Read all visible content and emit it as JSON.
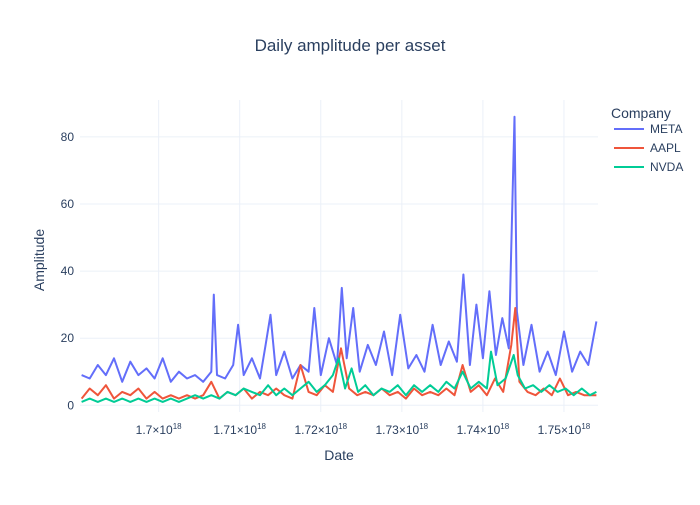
{
  "chart_data": {
    "type": "line",
    "title": "Daily amplitude per asset",
    "xlabel": "Date",
    "ylabel": "Amplitude",
    "x_range": [
      1.6903e+18,
      1.7542e+18
    ],
    "ylim": [
      -2,
      91
    ],
    "x_ticks": [
      {
        "value": 1.7e+18,
        "mantissa": "1.7",
        "exp": "18"
      },
      {
        "value": 1.71e+18,
        "mantissa": "1.71",
        "exp": "18"
      },
      {
        "value": 1.72e+18,
        "mantissa": "1.72",
        "exp": "18"
      },
      {
        "value": 1.73e+18,
        "mantissa": "1.73",
        "exp": "18"
      },
      {
        "value": 1.74e+18,
        "mantissa": "1.74",
        "exp": "18"
      },
      {
        "value": 1.75e+18,
        "mantissa": "1.75",
        "exp": "18"
      }
    ],
    "y_ticks": [
      0,
      20,
      40,
      60,
      80
    ],
    "grid": true,
    "legend": {
      "title": "Company",
      "position": "top-right"
    },
    "series": [
      {
        "name": "META",
        "color": "#636efa",
        "points": [
          [
            1.6905e+18,
            9
          ],
          [
            1.6915e+18,
            8
          ],
          [
            1.6925e+18,
            12
          ],
          [
            1.6935e+18,
            9
          ],
          [
            1.6945e+18,
            14
          ],
          [
            1.6955e+18,
            7
          ],
          [
            1.6965e+18,
            13
          ],
          [
            1.6975e+18,
            9
          ],
          [
            1.6985e+18,
            11
          ],
          [
            1.6995e+18,
            8
          ],
          [
            1.7005e+18,
            14
          ],
          [
            1.7015e+18,
            7
          ],
          [
            1.7025e+18,
            10
          ],
          [
            1.7035e+18,
            8
          ],
          [
            1.7045e+18,
            9
          ],
          [
            1.7055e+18,
            7
          ],
          [
            1.7065e+18,
            10
          ],
          [
            1.7068e+18,
            33
          ],
          [
            1.7072e+18,
            9
          ],
          [
            1.7082e+18,
            8
          ],
          [
            1.7092e+18,
            12
          ],
          [
            1.7098e+18,
            24
          ],
          [
            1.7105e+18,
            9
          ],
          [
            1.7115e+18,
            14
          ],
          [
            1.7125e+18,
            8
          ],
          [
            1.7132e+18,
            18
          ],
          [
            1.7138e+18,
            27
          ],
          [
            1.7145e+18,
            9
          ],
          [
            1.7155e+18,
            16
          ],
          [
            1.7165e+18,
            8
          ],
          [
            1.7175e+18,
            12
          ],
          [
            1.7185e+18,
            10
          ],
          [
            1.7192e+18,
            29
          ],
          [
            1.72e+18,
            9
          ],
          [
            1.721e+18,
            20
          ],
          [
            1.722e+18,
            12
          ],
          [
            1.7226e+18,
            35
          ],
          [
            1.7232e+18,
            14
          ],
          [
            1.724e+18,
            29
          ],
          [
            1.7248e+18,
            10
          ],
          [
            1.7258e+18,
            18
          ],
          [
            1.7268e+18,
            12
          ],
          [
            1.7278e+18,
            22
          ],
          [
            1.7288e+18,
            9
          ],
          [
            1.7298e+18,
            27
          ],
          [
            1.7308e+18,
            11
          ],
          [
            1.7318e+18,
            15
          ],
          [
            1.7328e+18,
            10
          ],
          [
            1.7338e+18,
            24
          ],
          [
            1.7348e+18,
            12
          ],
          [
            1.7358e+18,
            19
          ],
          [
            1.7368e+18,
            13
          ],
          [
            1.7376e+18,
            39
          ],
          [
            1.7384e+18,
            12
          ],
          [
            1.7392e+18,
            30
          ],
          [
            1.74e+18,
            14
          ],
          [
            1.7408e+18,
            34
          ],
          [
            1.7416e+18,
            15
          ],
          [
            1.7424e+18,
            26
          ],
          [
            1.7432e+18,
            17
          ],
          [
            1.7436e+18,
            57
          ],
          [
            1.7439e+18,
            86
          ],
          [
            1.7442e+18,
            28
          ],
          [
            1.745e+18,
            12
          ],
          [
            1.746e+18,
            24
          ],
          [
            1.747e+18,
            10
          ],
          [
            1.748e+18,
            16
          ],
          [
            1.749e+18,
            9
          ],
          [
            1.75e+18,
            22
          ],
          [
            1.751e+18,
            10
          ],
          [
            1.752e+18,
            16
          ],
          [
            1.753e+18,
            12
          ],
          [
            1.754e+18,
            25
          ]
        ]
      },
      {
        "name": "AAPL",
        "color": "#ef553b",
        "points": [
          [
            1.6905e+18,
            2
          ],
          [
            1.6915e+18,
            5
          ],
          [
            1.6925e+18,
            3
          ],
          [
            1.6935e+18,
            6
          ],
          [
            1.6945e+18,
            2
          ],
          [
            1.6955e+18,
            4
          ],
          [
            1.6965e+18,
            3
          ],
          [
            1.6975e+18,
            5
          ],
          [
            1.6985e+18,
            2
          ],
          [
            1.6995e+18,
            4
          ],
          [
            1.7005e+18,
            2
          ],
          [
            1.7015e+18,
            3
          ],
          [
            1.7025e+18,
            2
          ],
          [
            1.7035e+18,
            3
          ],
          [
            1.7045e+18,
            2
          ],
          [
            1.7055e+18,
            3
          ],
          [
            1.7065e+18,
            7
          ],
          [
            1.7075e+18,
            2
          ],
          [
            1.7085e+18,
            4
          ],
          [
            1.7095e+18,
            3
          ],
          [
            1.7105e+18,
            5
          ],
          [
            1.7115e+18,
            2
          ],
          [
            1.7125e+18,
            4
          ],
          [
            1.7135e+18,
            3
          ],
          [
            1.7145e+18,
            5
          ],
          [
            1.7155e+18,
            3
          ],
          [
            1.7165e+18,
            2
          ],
          [
            1.7175e+18,
            12
          ],
          [
            1.7185e+18,
            4
          ],
          [
            1.7195e+18,
            3
          ],
          [
            1.7205e+18,
            6
          ],
          [
            1.7215e+18,
            4
          ],
          [
            1.7225e+18,
            17
          ],
          [
            1.7235e+18,
            5
          ],
          [
            1.7245e+18,
            3
          ],
          [
            1.7255e+18,
            4
          ],
          [
            1.7265e+18,
            3
          ],
          [
            1.7275e+18,
            5
          ],
          [
            1.7285e+18,
            3
          ],
          [
            1.7295e+18,
            4
          ],
          [
            1.7305e+18,
            2
          ],
          [
            1.7315e+18,
            5
          ],
          [
            1.7325e+18,
            3
          ],
          [
            1.7335e+18,
            4
          ],
          [
            1.7345e+18,
            3
          ],
          [
            1.7355e+18,
            5
          ],
          [
            1.7365e+18,
            3
          ],
          [
            1.7375e+18,
            12
          ],
          [
            1.7385e+18,
            4
          ],
          [
            1.7395e+18,
            6
          ],
          [
            1.7405e+18,
            3
          ],
          [
            1.7415e+18,
            8
          ],
          [
            1.7425e+18,
            4
          ],
          [
            1.7435e+18,
            18
          ],
          [
            1.744e+18,
            29
          ],
          [
            1.7445e+18,
            7
          ],
          [
            1.7455e+18,
            4
          ],
          [
            1.7465e+18,
            3
          ],
          [
            1.7475e+18,
            5
          ],
          [
            1.7485e+18,
            3
          ],
          [
            1.7495e+18,
            8
          ],
          [
            1.7505e+18,
            3
          ],
          [
            1.7515e+18,
            4
          ],
          [
            1.7525e+18,
            3
          ],
          [
            1.754e+18,
            3
          ]
        ]
      },
      {
        "name": "NVDA",
        "color": "#00cc96",
        "points": [
          [
            1.6905e+18,
            1
          ],
          [
            1.6915e+18,
            2
          ],
          [
            1.6925e+18,
            1
          ],
          [
            1.6935e+18,
            2
          ],
          [
            1.6945e+18,
            1
          ],
          [
            1.6955e+18,
            2
          ],
          [
            1.6965e+18,
            1
          ],
          [
            1.6975e+18,
            2
          ],
          [
            1.6985e+18,
            1
          ],
          [
            1.6995e+18,
            2
          ],
          [
            1.7005e+18,
            1
          ],
          [
            1.7015e+18,
            2
          ],
          [
            1.7025e+18,
            1
          ],
          [
            1.7035e+18,
            2
          ],
          [
            1.7045e+18,
            3
          ],
          [
            1.7055e+18,
            2
          ],
          [
            1.7065e+18,
            3
          ],
          [
            1.7075e+18,
            2
          ],
          [
            1.7085e+18,
            4
          ],
          [
            1.7095e+18,
            3
          ],
          [
            1.7105e+18,
            5
          ],
          [
            1.7115e+18,
            4
          ],
          [
            1.7125e+18,
            3
          ],
          [
            1.7135e+18,
            6
          ],
          [
            1.7145e+18,
            3
          ],
          [
            1.7155e+18,
            5
          ],
          [
            1.7165e+18,
            3
          ],
          [
            1.7175e+18,
            5
          ],
          [
            1.7185e+18,
            7
          ],
          [
            1.7195e+18,
            4
          ],
          [
            1.7205e+18,
            6
          ],
          [
            1.7215e+18,
            9
          ],
          [
            1.7222e+18,
            14
          ],
          [
            1.723e+18,
            5
          ],
          [
            1.7238e+18,
            11
          ],
          [
            1.7246e+18,
            4
          ],
          [
            1.7255e+18,
            6
          ],
          [
            1.7265e+18,
            3
          ],
          [
            1.7275e+18,
            5
          ],
          [
            1.7285e+18,
            4
          ],
          [
            1.7295e+18,
            6
          ],
          [
            1.7305e+18,
            3
          ],
          [
            1.7315e+18,
            6
          ],
          [
            1.7325e+18,
            4
          ],
          [
            1.7335e+18,
            6
          ],
          [
            1.7345e+18,
            4
          ],
          [
            1.7355e+18,
            7
          ],
          [
            1.7365e+18,
            5
          ],
          [
            1.7375e+18,
            10
          ],
          [
            1.7385e+18,
            5
          ],
          [
            1.7395e+18,
            7
          ],
          [
            1.7405e+18,
            5
          ],
          [
            1.741e+18,
            16
          ],
          [
            1.7418e+18,
            6
          ],
          [
            1.7428e+18,
            8
          ],
          [
            1.7438e+18,
            15
          ],
          [
            1.7443e+18,
            9
          ],
          [
            1.7452e+18,
            5
          ],
          [
            1.7462e+18,
            6
          ],
          [
            1.7472e+18,
            4
          ],
          [
            1.7482e+18,
            6
          ],
          [
            1.7492e+18,
            4
          ],
          [
            1.7502e+18,
            5
          ],
          [
            1.7512e+18,
            3
          ],
          [
            1.7522e+18,
            5
          ],
          [
            1.7532e+18,
            3
          ],
          [
            1.754e+18,
            4
          ]
        ]
      }
    ]
  }
}
